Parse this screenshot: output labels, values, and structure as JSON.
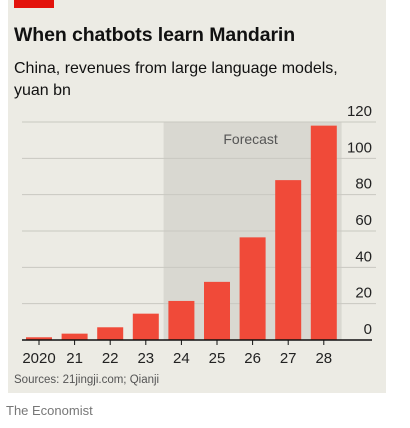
{
  "header": {
    "title": "When chatbots learn Mandarin",
    "subtitle": "China, revenues from large language models, yuan bn"
  },
  "footer": {
    "source": "Sources: 21jingji.com; Qianji",
    "publisher": "The Economist"
  },
  "colors": {
    "accent": "#e3120b",
    "bar": "#f04a39",
    "forecast_band": "#d9d8d1",
    "gridline": "#c9c8c1",
    "card_background": "#ecebe4"
  },
  "chart_data": {
    "type": "bar",
    "title": "When chatbots learn Mandarin",
    "subtitle": "China, revenues from large language models, yuan bn",
    "categories": [
      "2020",
      "21",
      "22",
      "23",
      "24",
      "25",
      "26",
      "27",
      "28"
    ],
    "values": [
      1.5,
      3.5,
      7,
      14.5,
      21.5,
      32,
      56.5,
      88,
      118
    ],
    "ylim": [
      0,
      120
    ],
    "yticks": [
      0,
      20,
      40,
      60,
      80,
      100,
      120
    ],
    "y_axis_side": "right",
    "grid": true,
    "forecast": {
      "label": "Forecast",
      "start_category": "24",
      "end_category": "28"
    }
  }
}
